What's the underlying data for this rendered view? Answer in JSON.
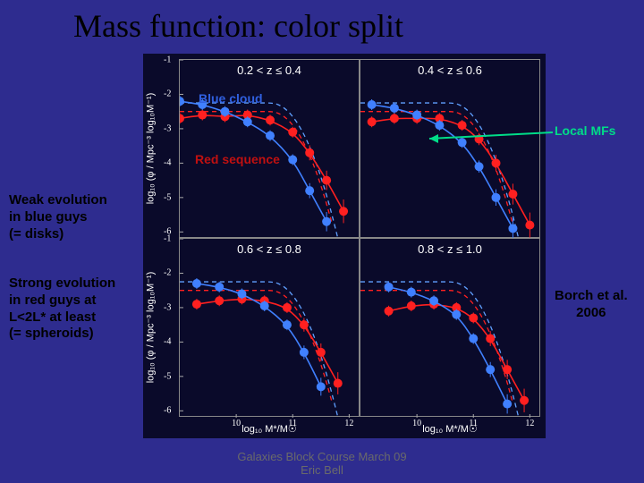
{
  "title": "Mass function: color split",
  "chart": {
    "background_color": "#0a0a2a",
    "panel_border_color": "#888888",
    "xlim": [
      9.0,
      12.2
    ],
    "ylim": [
      -6.2,
      -1.0
    ],
    "xticks": [
      10,
      11,
      12
    ],
    "yticks": [
      -1,
      -2,
      -3,
      -4,
      -5,
      -6
    ],
    "ylabel": "log₁₀ (φ / Mpc⁻³ log₁₀M⁻¹)",
    "xlabel": "log₁₀ M*/M☉",
    "panels": [
      {
        "label": "0.2 < z ≤ 0.4",
        "row": 0,
        "col": 0
      },
      {
        "label": "0.4 < z ≤ 0.6",
        "row": 0,
        "col": 1
      },
      {
        "label": "0.6 < z ≤ 0.8",
        "row": 1,
        "col": 0
      },
      {
        "label": "0.8 < z ≤ 1.0",
        "row": 1,
        "col": 1
      }
    ],
    "series": {
      "red": {
        "color": "#ff2020",
        "marker": "circle",
        "marker_size": 5,
        "points": [
          [
            [
              9.0,
              -2.7
            ],
            [
              9.4,
              -2.6
            ],
            [
              9.8,
              -2.65
            ],
            [
              10.2,
              -2.6
            ],
            [
              10.6,
              -2.75
            ],
            [
              11.0,
              -3.1
            ],
            [
              11.3,
              -3.7
            ],
            [
              11.6,
              -4.5
            ],
            [
              11.9,
              -5.4
            ]
          ],
          [
            [
              9.2,
              -2.8
            ],
            [
              9.6,
              -2.7
            ],
            [
              10.0,
              -2.7
            ],
            [
              10.4,
              -2.7
            ],
            [
              10.8,
              -2.9
            ],
            [
              11.1,
              -3.3
            ],
            [
              11.4,
              -4.0
            ],
            [
              11.7,
              -4.9
            ],
            [
              12.0,
              -5.8
            ]
          ],
          [
            [
              9.3,
              -2.9
            ],
            [
              9.7,
              -2.8
            ],
            [
              10.1,
              -2.75
            ],
            [
              10.5,
              -2.8
            ],
            [
              10.9,
              -3.0
            ],
            [
              11.2,
              -3.5
            ],
            [
              11.5,
              -4.3
            ],
            [
              11.8,
              -5.2
            ]
          ],
          [
            [
              9.5,
              -3.1
            ],
            [
              9.9,
              -2.95
            ],
            [
              10.3,
              -2.9
            ],
            [
              10.7,
              -3.0
            ],
            [
              11.0,
              -3.3
            ],
            [
              11.3,
              -3.9
            ],
            [
              11.6,
              -4.8
            ],
            [
              11.9,
              -5.7
            ]
          ]
        ]
      },
      "blue": {
        "color": "#4080ff",
        "marker": "circle",
        "marker_size": 5,
        "points": [
          [
            [
              9.0,
              -2.2
            ],
            [
              9.4,
              -2.3
            ],
            [
              9.8,
              -2.5
            ],
            [
              10.2,
              -2.8
            ],
            [
              10.6,
              -3.2
            ],
            [
              11.0,
              -3.9
            ],
            [
              11.3,
              -4.8
            ],
            [
              11.6,
              -5.7
            ]
          ],
          [
            [
              9.2,
              -2.3
            ],
            [
              9.6,
              -2.4
            ],
            [
              10.0,
              -2.6
            ],
            [
              10.4,
              -2.9
            ],
            [
              10.8,
              -3.4
            ],
            [
              11.1,
              -4.1
            ],
            [
              11.4,
              -5.0
            ],
            [
              11.7,
              -5.9
            ]
          ],
          [
            [
              9.3,
              -2.3
            ],
            [
              9.7,
              -2.4
            ],
            [
              10.1,
              -2.6
            ],
            [
              10.5,
              -2.95
            ],
            [
              10.9,
              -3.5
            ],
            [
              11.2,
              -4.3
            ],
            [
              11.5,
              -5.3
            ]
          ],
          [
            [
              9.5,
              -2.4
            ],
            [
              9.9,
              -2.55
            ],
            [
              10.3,
              -2.8
            ],
            [
              10.7,
              -3.2
            ],
            [
              11.0,
              -3.9
            ],
            [
              11.3,
              -4.8
            ],
            [
              11.6,
              -5.8
            ]
          ]
        ]
      }
    },
    "local_curves": {
      "red_local": {
        "color": "#ff2020",
        "dash": "5,4",
        "width": 1.3
      },
      "blue_local": {
        "color": "#60a0ff",
        "dash": "5,4",
        "width": 1.3
      }
    },
    "fit_line_width": 1.6,
    "errorbar_width": 1
  },
  "annotations": {
    "blue_cloud": {
      "text": "Blue cloud",
      "color": "#3060e0"
    },
    "red_sequence": {
      "text": "Red sequence",
      "color": "#c01010"
    },
    "local_mfs": {
      "text": "Local MFs",
      "color": "#00dd88"
    },
    "local_arrow_color": "#00dd88"
  },
  "side": {
    "weak": "Weak evolution\nin blue guys\n(= disks)",
    "strong": "Strong evolution\nin red guys at\nL<2L* at least\n(= spheroids)",
    "citation": "Borch et al.\n2006"
  },
  "footer": {
    "line1": "Galaxies Block Course March 09",
    "line2": "Eric Bell"
  }
}
